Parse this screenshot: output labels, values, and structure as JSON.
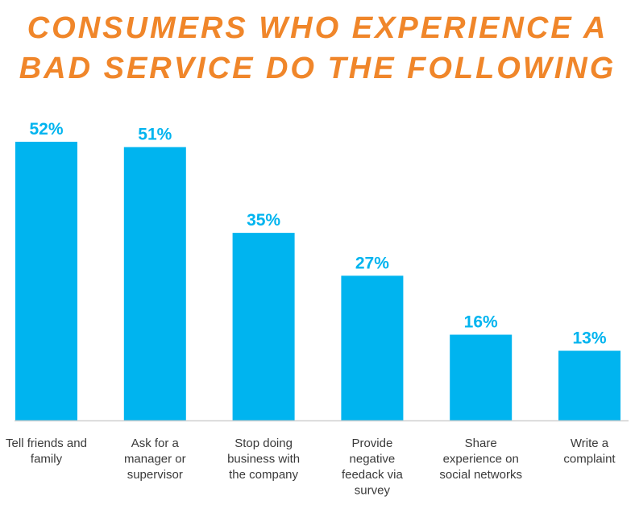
{
  "chart_data": {
    "type": "bar",
    "title_lines": [
      "CONSUMERS WHO EXPERIENCE A",
      "BAD SERVICE DO THE FOLLOWING"
    ],
    "categories": [
      [
        "Tell friends and",
        "family"
      ],
      [
        "Ask for a",
        "manager or",
        "supervisor"
      ],
      [
        "Stop doing",
        "business with",
        "the company"
      ],
      [
        "Provide",
        "negative",
        "feedack via",
        "survey"
      ],
      [
        "Share",
        "experience on",
        "social networks"
      ],
      [
        "Write a",
        "complaint"
      ]
    ],
    "values": [
      52,
      51,
      35,
      27,
      16,
      13
    ],
    "data_labels": [
      "52%",
      "51%",
      "35%",
      "27%",
      "16%",
      "13%"
    ],
    "unit": "%",
    "ylim": [
      0,
      52
    ],
    "grid": false,
    "colors": {
      "bar": "#00b4ef",
      "title": "#f0862a",
      "label": "#00b4ef",
      "axis": "#d0d0d0"
    }
  }
}
